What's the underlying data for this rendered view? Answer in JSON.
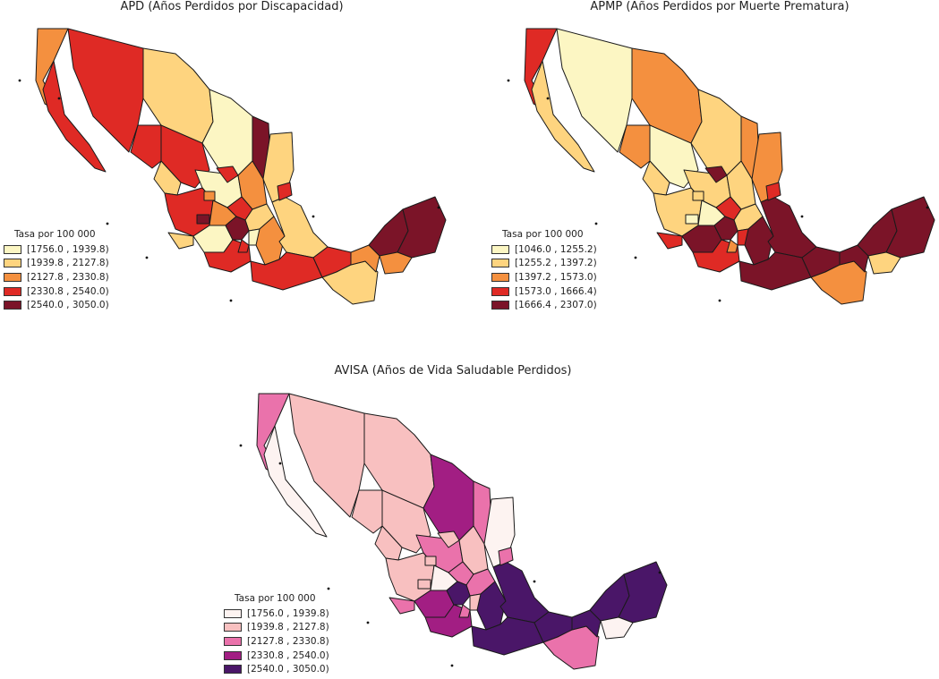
{
  "maps": [
    {
      "title": "APD (Años Perdidos por Discapacidad)",
      "legend_title": "Tasa por 100 000",
      "classes": [
        {
          "label": "[1756.0 , 1939.8)",
          "color": "#fcf6c3"
        },
        {
          "label": "[1939.8 , 2127.8)",
          "color": "#fed47f"
        },
        {
          "label": "[2127.8 , 2330.8)",
          "color": "#f4903f"
        },
        {
          "label": "[2330.8 , 2540.0)",
          "color": "#df2a25"
        },
        {
          "label": "[2540.0 , 3050.0)",
          "color": "#7b1428"
        }
      ],
      "regions": [
        2,
        3,
        3,
        1,
        0,
        4,
        1,
        3,
        3,
        0,
        2,
        1,
        3,
        2,
        2,
        3,
        1,
        0,
        4,
        1,
        3,
        0,
        2,
        1,
        3,
        3,
        1,
        2,
        4,
        4,
        3,
        4,
        3,
        3,
        2
      ]
    },
    {
      "title": "APMP (Años Perdidos por Muerte Prematura)",
      "legend_title": "Tasa por 100 000",
      "classes": [
        {
          "label": "[1046.0 , 1255.2)",
          "color": "#fcf6c3"
        },
        {
          "label": "[1255.2 , 1397.2)",
          "color": "#fed47f"
        },
        {
          "label": "[1397.2 , 1573.0)",
          "color": "#f4903f"
        },
        {
          "label": "[1573.0 , 1666.4)",
          "color": "#df2a25"
        },
        {
          "label": "[1666.4 , 2307.0)",
          "color": "#7b1428"
        }
      ],
      "regions": [
        3,
        1,
        0,
        2,
        1,
        2,
        2,
        2,
        0,
        1,
        1,
        1,
        1,
        1,
        0,
        3,
        1,
        4,
        4,
        3,
        3,
        3,
        4,
        4,
        4,
        4,
        2,
        4,
        4,
        4,
        2,
        0,
        3,
        4,
        1
      ]
    },
    {
      "title": "AVISA (Años de Vida Saludable Perdidos)",
      "legend_title": "Tasa por 100 000",
      "classes": [
        {
          "label": "[1756.0 , 1939.8)",
          "color": "#fdf3f1"
        },
        {
          "label": "[1939.8 , 2127.8)",
          "color": "#f8c0c0"
        },
        {
          "label": "[2127.8 , 2330.8)",
          "color": "#ea72ab"
        },
        {
          "label": "[2330.8 , 2540.0)",
          "color": "#a21e83"
        },
        {
          "label": "[2540.0 , 3050.0)",
          "color": "#4a1668"
        }
      ],
      "regions": [
        2,
        0,
        1,
        1,
        3,
        2,
        0,
        1,
        1,
        2,
        1,
        1,
        1,
        1,
        0,
        2,
        2,
        3,
        4,
        2,
        3,
        1,
        4,
        4,
        4,
        4,
        2,
        4,
        4,
        4,
        2,
        1,
        2,
        1,
        0
      ]
    }
  ]
}
